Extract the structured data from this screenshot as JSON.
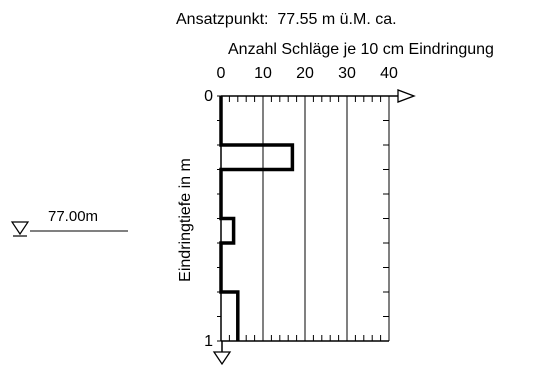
{
  "chart_data": {
    "type": "line",
    "title": "Ansatzpunkt:  77.55 m ü.M. ca.",
    "xlabel": "Anzahl Schläge je 10 cm Eindringung",
    "ylabel": "Eindringtiefe in m",
    "xlim": [
      0,
      40
    ],
    "ylim": [
      0,
      1
    ],
    "x_ticks": [
      "0",
      "10",
      "20",
      "30",
      "40"
    ],
    "y_ticks": [
      "0",
      "1"
    ],
    "grid": true,
    "water_level_label": "77.00m",
    "series": [
      {
        "values": [
          {
            "depth_from": 0.0,
            "depth_to": 0.2,
            "blows": 0
          },
          {
            "depth_from": 0.2,
            "depth_to": 0.3,
            "blows": 17
          },
          {
            "depth_from": 0.3,
            "depth_to": 0.5,
            "blows": 0
          },
          {
            "depth_from": 0.5,
            "depth_to": 0.6,
            "blows": 3
          },
          {
            "depth_from": 0.6,
            "depth_to": 0.8,
            "blows": 0
          },
          {
            "depth_from": 0.8,
            "depth_to": 1.0,
            "blows": 4
          }
        ]
      }
    ]
  }
}
